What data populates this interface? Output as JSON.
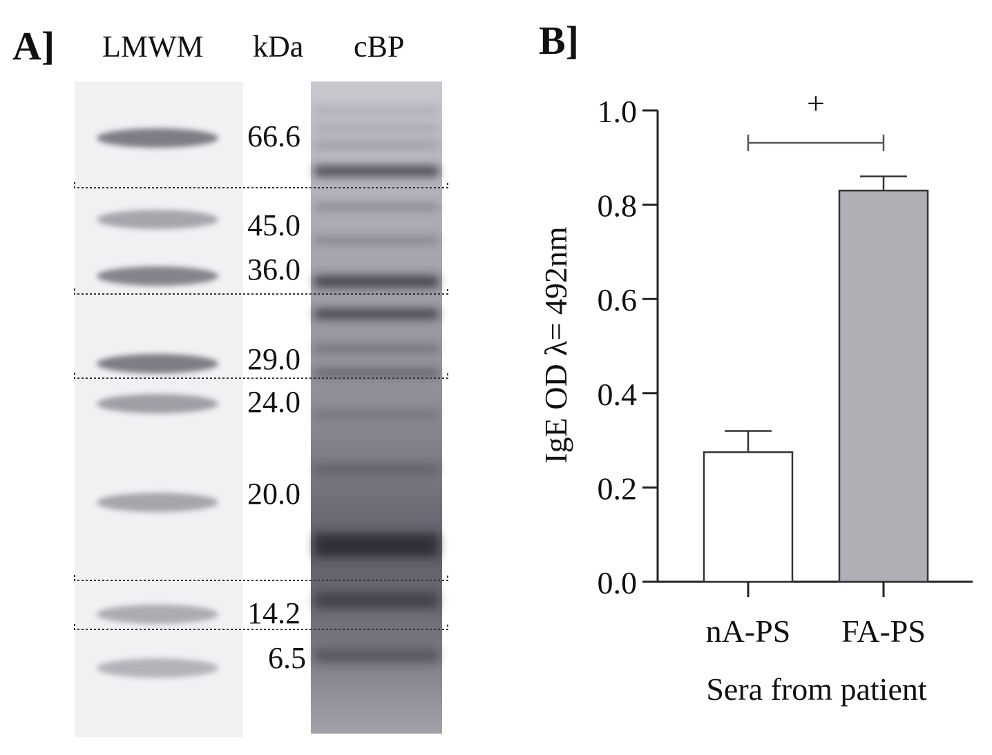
{
  "panel_a": {
    "panel_label": "A]",
    "lane_labels": {
      "marker": "LMWM",
      "unit": "kDa",
      "sample": "cBP"
    },
    "marker_bands_kda": [
      "66.6",
      "45.0",
      "36.0",
      "29.0",
      "24.0",
      "20.0",
      "14.2",
      "6.5"
    ]
  },
  "panel_b": {
    "panel_label": "B]",
    "significance_marker": "+"
  },
  "chart_data": {
    "type": "bar",
    "categories": [
      "nA-PS",
      "FA-PS"
    ],
    "values": [
      0.275,
      0.83
    ],
    "error": [
      0.045,
      0.03
    ],
    "bar_colors": [
      "#ffffff",
      "#b0afb6"
    ],
    "xlabel": "Sera from patient",
    "ylabel": "IgE OD λ= 492nm",
    "ylim": [
      0,
      1.0
    ],
    "yticks": [
      "0.0",
      "0.2",
      "0.4",
      "0.6",
      "0.8",
      "1.0"
    ],
    "grid": false,
    "legend": "none"
  }
}
